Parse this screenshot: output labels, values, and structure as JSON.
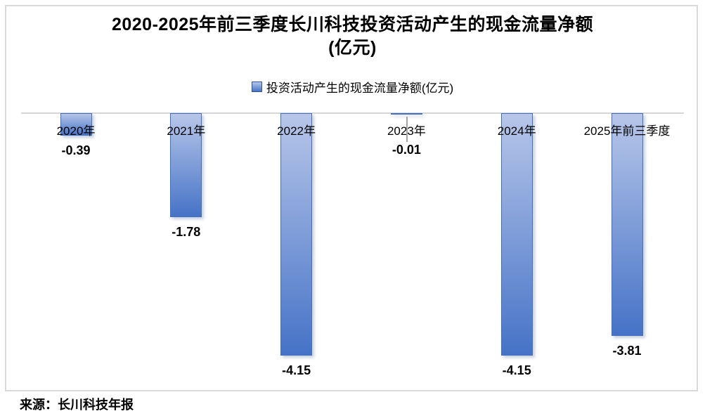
{
  "title_text": "2020-2025年前三季度长川科技投资活动产生的现金流量净额\n(亿元)",
  "legend": {
    "label": "投资活动产生的现金流量净额(亿元)"
  },
  "source": "来源：长川科技年报",
  "colors": {
    "bar_fill_top": "#b7c6e9",
    "bar_fill_bottom": "#4673c7",
    "bar_border": "#4270bd",
    "axis_line": "#d6d6d6",
    "frame_border": "#d9d9d9",
    "text": "#000000"
  },
  "chart_data": {
    "type": "bar",
    "title": "2020-2025年前三季度长川科技投资活动产生的现金流量净额(亿元)",
    "categories": [
      "2020年",
      "2021年",
      "2022年",
      "2023年",
      "2024年",
      "2025年前三季度"
    ],
    "series": [
      {
        "name": "投资活动产生的现金流量净额(亿元)",
        "values": [
          -0.39,
          -1.78,
          -4.15,
          -0.01,
          -4.15,
          -3.81
        ]
      }
    ],
    "labels": [
      "-0.39",
      "-1.78",
      "-4.15",
      "-0.01",
      "-4.15",
      "-3.81"
    ],
    "xlabel": "",
    "ylabel": "",
    "ylim": [
      -4.6,
      0
    ],
    "grid": false,
    "legend_position": "top",
    "baseline": "top",
    "data_label_position": "outside-end"
  }
}
